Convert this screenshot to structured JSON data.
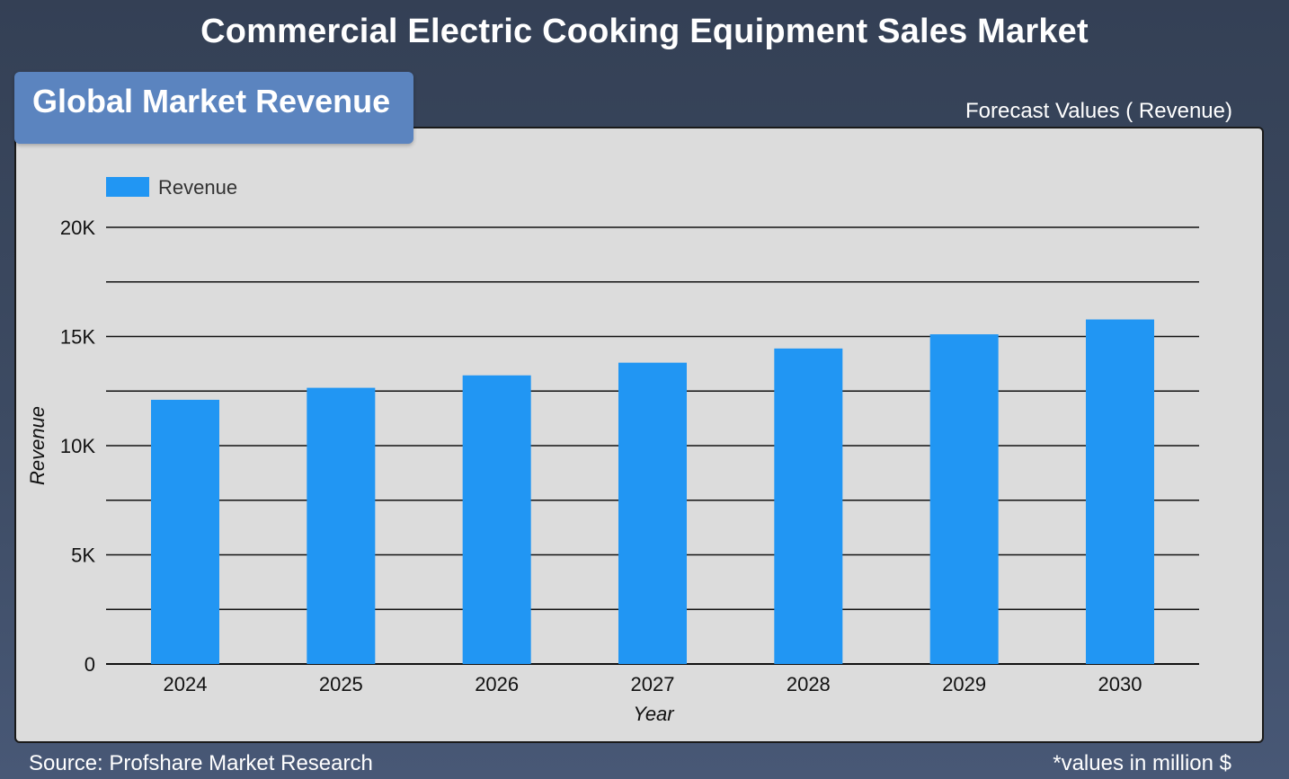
{
  "header": {
    "title": "Commercial Electric Cooking Equipment Sales Market",
    "subtitle": "Global Market Revenue",
    "forecast_label": "Forecast Values ( Revenue)"
  },
  "footer": {
    "source": "Source: Profshare Market Research",
    "units_note": "*values in million $"
  },
  "colors": {
    "bar": "#2196f3",
    "grid": "#111111",
    "panel": "#dcdcdc",
    "subtitle_box": "#5b84bf"
  },
  "chart_data": {
    "type": "bar",
    "categories": [
      "2024",
      "2025",
      "2026",
      "2027",
      "2028",
      "2029",
      "2030"
    ],
    "series": [
      {
        "name": "Revenue",
        "values": [
          12100,
          12650,
          13220,
          13800,
          14450,
          15100,
          15780
        ]
      }
    ],
    "xlabel": "Year",
    "ylabel": "Revenue",
    "ylim": [
      0,
      20000
    ],
    "yticks": [
      {
        "value": 0,
        "label": "0"
      },
      {
        "value": 5000,
        "label": "5K"
      },
      {
        "value": 10000,
        "label": "10K"
      },
      {
        "value": 15000,
        "label": "15K"
      },
      {
        "value": 20000,
        "label": "20K"
      }
    ],
    "gridlines": [
      0,
      2500,
      5000,
      7500,
      10000,
      12500,
      15000,
      17500,
      20000
    ],
    "grid": true,
    "legend_position": "top-left"
  }
}
